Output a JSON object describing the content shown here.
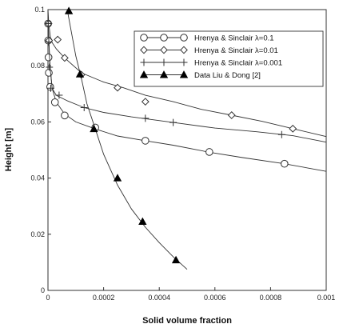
{
  "chart_data": {
    "type": "scatter",
    "xlabel": "Solid volume fraction",
    "ylabel": "Height [m]",
    "xlim": [
      0,
      0.001
    ],
    "ylim": [
      0,
      0.1
    ],
    "x_ticks": [
      "0",
      "0.0002",
      "0.0004",
      "0.0006",
      "0.0008",
      "0.001"
    ],
    "y_ticks": [
      "0",
      "0.02",
      "0.04",
      "0.06",
      "0.08",
      "0.1"
    ],
    "grid": false,
    "legend_position": "top-right",
    "series": [
      {
        "name": "Hrenya & Sinclair λ=0.1",
        "marker": "circle",
        "line": [
          [
            0,
            0.098
          ],
          [
            2.5e-06,
            0.09
          ],
          [
            7.5e-06,
            0.08
          ],
          [
            1.5e-05,
            0.072
          ],
          [
            3e-05,
            0.067
          ],
          [
            6e-05,
            0.0628
          ],
          [
            0.0001,
            0.06
          ],
          [
            0.00017,
            0.0575
          ],
          [
            0.00025,
            0.055
          ],
          [
            0.00035,
            0.0533
          ],
          [
            0.00045,
            0.0517
          ],
          [
            0.00058,
            0.0492
          ],
          [
            0.0007,
            0.0473
          ],
          [
            0.00085,
            0.0451
          ],
          [
            0.001,
            0.0424
          ]
        ],
        "points": [
          [
            5e-07,
            0.095
          ],
          [
            1e-06,
            0.089
          ],
          [
            2e-06,
            0.083
          ],
          [
            3e-06,
            0.0775
          ],
          [
            8e-06,
            0.0725
          ],
          [
            2.5e-05,
            0.067
          ],
          [
            6e-05,
            0.0623
          ],
          [
            0.00017,
            0.058
          ],
          [
            0.00035,
            0.0533
          ],
          [
            0.00058,
            0.0493
          ],
          [
            0.00085,
            0.0451
          ]
        ]
      },
      {
        "name": "Hrenya & Sinclair λ=0.01",
        "marker": "diamond",
        "line": [
          [
            0,
            0.1
          ],
          [
            3e-06,
            0.095
          ],
          [
            1e-05,
            0.089
          ],
          [
            3e-05,
            0.086
          ],
          [
            6e-05,
            0.0828
          ],
          [
            0.00012,
            0.0775
          ],
          [
            0.0002,
            0.0742
          ],
          [
            0.00027,
            0.0722
          ],
          [
            0.00035,
            0.0695
          ],
          [
            0.00045,
            0.0672
          ],
          [
            0.00055,
            0.0645
          ],
          [
            0.00066,
            0.0624
          ],
          [
            0.00077,
            0.0602
          ],
          [
            0.00088,
            0.0576
          ],
          [
            0.001,
            0.0548
          ]
        ],
        "points": [
          [
            2e-06,
            0.095
          ],
          [
            4e-06,
            0.089
          ],
          [
            3.5e-05,
            0.0893
          ],
          [
            6e-05,
            0.0828
          ],
          [
            0.00012,
            0.0768
          ],
          [
            0.00025,
            0.0722
          ],
          [
            0.00035,
            0.0672
          ],
          [
            0.00066,
            0.0624
          ],
          [
            0.00088,
            0.0576
          ]
        ]
      },
      {
        "name": "Hrenya & Sinclair λ=0.001",
        "marker": "plus",
        "line": [
          [
            0,
            0.1
          ],
          [
            1e-06,
            0.095
          ],
          [
            3e-06,
            0.089
          ],
          [
            7e-06,
            0.08
          ],
          [
            1.5e-05,
            0.072
          ],
          [
            3e-05,
            0.0695
          ],
          [
            7e-05,
            0.0675
          ],
          [
            0.00013,
            0.0651
          ],
          [
            0.0002,
            0.0634
          ],
          [
            0.0003,
            0.0618
          ],
          [
            0.00045,
            0.0598
          ],
          [
            0.0006,
            0.0578
          ],
          [
            0.00075,
            0.0565
          ],
          [
            0.00088,
            0.0551
          ],
          [
            0.001,
            0.0528
          ]
        ],
        "points": [
          [
            1e-06,
            0.095
          ],
          [
            3e-06,
            0.0885
          ],
          [
            5e-06,
            0.0795
          ],
          [
            1e-05,
            0.072
          ],
          [
            4e-05,
            0.0695
          ],
          [
            0.00013,
            0.0651
          ],
          [
            0.00035,
            0.0613
          ],
          [
            0.00045,
            0.0598
          ],
          [
            0.00084,
            0.0555
          ]
        ]
      },
      {
        "name": "Data Liu & Dong [2]",
        "marker": "triangle",
        "line": [
          [
            7e-05,
            0.0995
          ],
          [
            0.0001,
            0.0835
          ],
          [
            0.00012,
            0.0755
          ],
          [
            0.00014,
            0.0665
          ],
          [
            0.00017,
            0.0575
          ],
          [
            0.0002,
            0.0485
          ],
          [
            0.00025,
            0.0375
          ],
          [
            0.0003,
            0.029
          ],
          [
            0.00035,
            0.0225
          ],
          [
            0.0004,
            0.017
          ],
          [
            0.00045,
            0.012
          ],
          [
            0.0005,
            0.0075
          ]
        ],
        "points": [
          [
            7.5e-05,
            0.0995
          ],
          [
            0.000115,
            0.077
          ],
          [
            0.000165,
            0.0575
          ],
          [
            0.00025,
            0.04
          ],
          [
            0.00034,
            0.0245
          ],
          [
            0.00046,
            0.0108
          ]
        ]
      }
    ]
  }
}
